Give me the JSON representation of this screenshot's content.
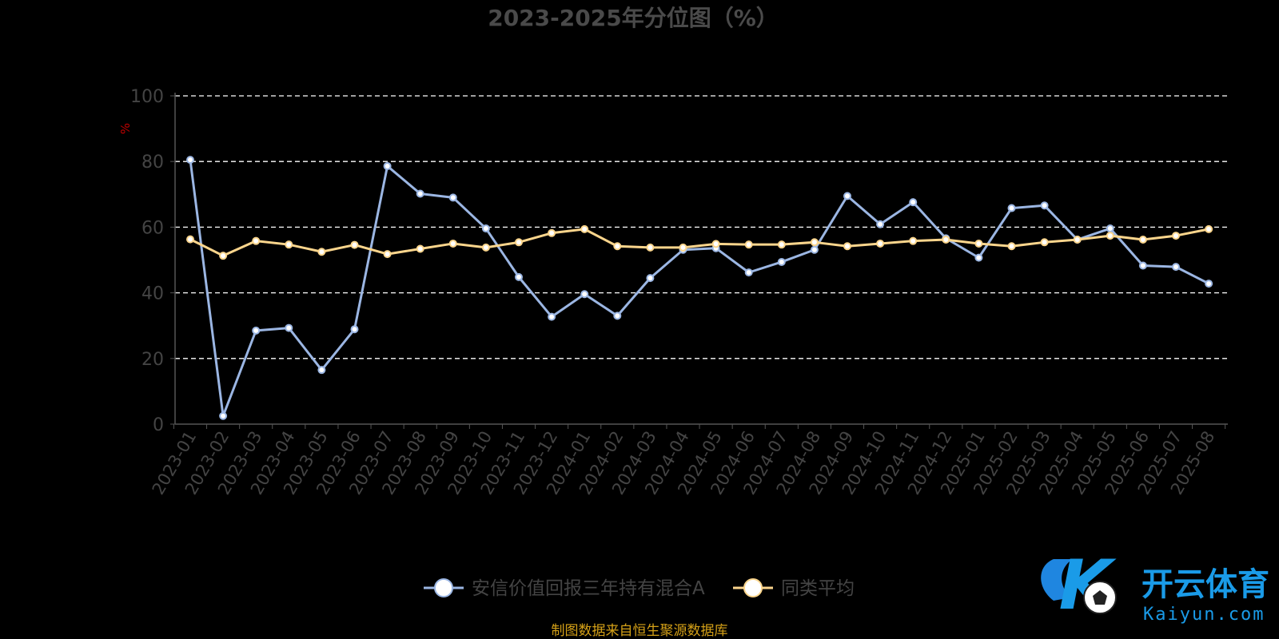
{
  "chart_data": {
    "type": "line",
    "title": "2023-2025年分位图（%）",
    "ylabel": "%",
    "xlabel": "",
    "ylim": [
      0,
      100
    ],
    "y_ticks": [
      0,
      20,
      40,
      60,
      80,
      100
    ],
    "grid": true,
    "legend_position": "bottom-center",
    "categories": [
      "2023-01",
      "2023-02",
      "2023-03",
      "2023-04",
      "2023-05",
      "2023-06",
      "2023-07",
      "2023-08",
      "2023-09",
      "2023-10",
      "2023-11",
      "2023-12",
      "2024-01",
      "2024-02",
      "2024-03",
      "2024-04",
      "2024-05",
      "2024-06",
      "2024-07",
      "2024-08",
      "2024-09",
      "2024-10",
      "2024-11",
      "2024-12",
      "2025-01",
      "2025-02",
      "2025-03",
      "2025-04",
      "2025-05",
      "2025-06",
      "2025-07",
      "2025-08"
    ],
    "series": [
      {
        "name": "安信价值回报三年持有混合A",
        "color": "#9bb6e3",
        "values": [
          80.5,
          2.5,
          28.5,
          29.3,
          16.5,
          28.9,
          78.6,
          70.2,
          69.0,
          59.6,
          44.8,
          32.7,
          39.6,
          33.0,
          44.5,
          53.1,
          53.6,
          46.2,
          49.4,
          53.1,
          69.5,
          60.9,
          67.6,
          56.6,
          50.7,
          65.8,
          66.6,
          56.2,
          59.6,
          48.3,
          47.9,
          42.8
        ]
      },
      {
        "name": "同类平均",
        "color": "#fbd58c",
        "values": [
          56.3,
          51.3,
          55.8,
          54.7,
          52.5,
          54.6,
          51.8,
          53.4,
          55.0,
          53.8,
          55.4,
          58.2,
          59.4,
          54.2,
          53.8,
          53.8,
          54.9,
          54.7,
          54.7,
          55.4,
          54.2,
          55.0,
          55.8,
          56.2,
          55.0,
          54.2,
          55.4,
          56.2,
          57.4,
          56.2,
          57.4,
          59.4
        ]
      }
    ]
  },
  "source_note": "制图数据来自恒生聚源数据库",
  "watermark": {
    "cn_text": "开云体育",
    "en_text": "Kaiyun.com",
    "mark": "K"
  },
  "colors": {
    "background": "#000000",
    "axis_text": "#444444",
    "title": "#4a4a4a",
    "grid": "#ffffff",
    "ylabel": "#c00000",
    "source": "#d4a017"
  }
}
